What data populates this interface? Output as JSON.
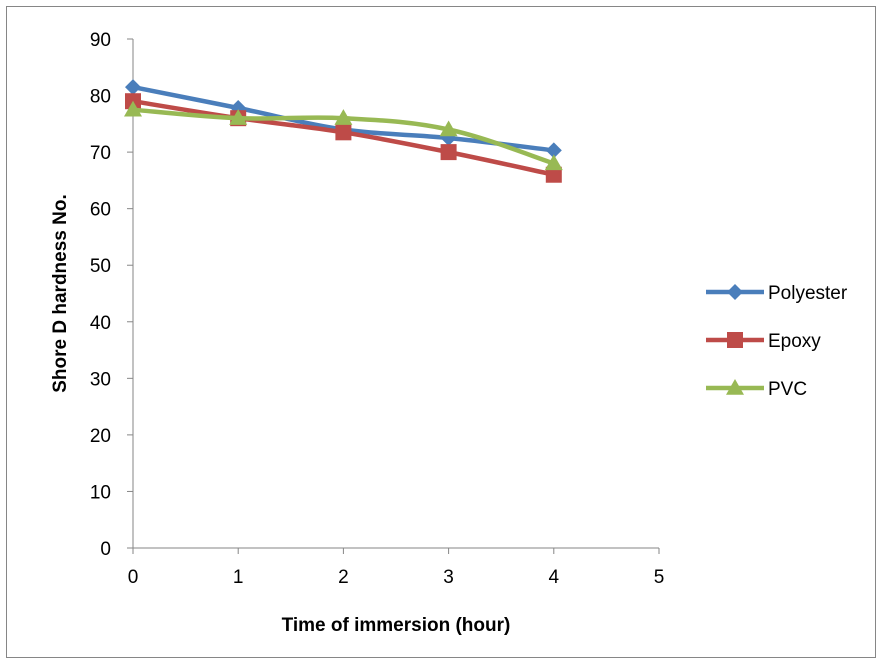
{
  "chart_data": {
    "type": "line",
    "title": "",
    "xlabel": "Time of immersion (hour)",
    "ylabel": "Shore D hardness No.",
    "x": [
      0,
      1,
      2,
      3,
      4
    ],
    "xlim": [
      0,
      5
    ],
    "ylim": [
      0,
      90
    ],
    "xticks": [
      "0",
      "1",
      "2",
      "3",
      "4",
      "5"
    ],
    "yticks": [
      "0",
      "10",
      "20",
      "30",
      "40",
      "50",
      "60",
      "70",
      "80",
      "90"
    ],
    "grid": false,
    "legend_position": "right",
    "series": [
      {
        "name": "Polyester",
        "values": [
          81.5,
          77.8,
          74,
          72.5,
          70.3
        ],
        "color": "#4a7ebb",
        "marker": "diamond"
      },
      {
        "name": "Epoxy",
        "values": [
          79,
          76,
          73.5,
          70,
          66
        ],
        "color": "#be4b48",
        "marker": "square"
      },
      {
        "name": "PVC",
        "values": [
          77.5,
          76,
          76,
          74,
          68
        ],
        "color": "#98b954",
        "marker": "triangle"
      }
    ]
  }
}
